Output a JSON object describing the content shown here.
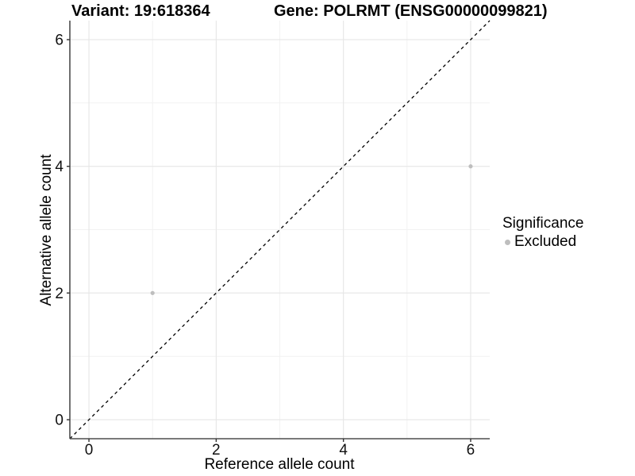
{
  "header": {
    "variant_title": "Variant: 19:618364",
    "gene_title": "Gene: POLRMT (ENSG00000099821)"
  },
  "legend": {
    "title": "Significance",
    "items": [
      {
        "label": "Excluded",
        "color": "#bebebe"
      }
    ]
  },
  "colors": {
    "background": "#ffffff",
    "grid_major": "#e6e6e6",
    "grid_minor": "#f2f2f2",
    "axis_line": "#4d4d4d",
    "tick_mark": "#333333",
    "tick_label": "#111111",
    "text": "#000000",
    "reference_line": "#000000",
    "point": "#bebebe"
  },
  "chart_data": {
    "type": "scatter",
    "title": "Variant: 19:618364  /  Gene: POLRMT (ENSG00000099821)",
    "xlabel": "Reference allele count",
    "ylabel": "Alternative allele count",
    "xlim": [
      -0.3,
      6.3
    ],
    "ylim": [
      -0.3,
      6.3
    ],
    "x_ticks": [
      0,
      2,
      4,
      6
    ],
    "y_ticks": [
      0,
      2,
      4,
      6
    ],
    "x_minor_ticks": [
      1,
      3,
      5
    ],
    "y_minor_ticks": [
      1,
      3,
      5
    ],
    "grid": true,
    "legend_position": "right",
    "series": [
      {
        "name": "Excluded",
        "color": "#bebebe",
        "points": [
          {
            "x": 1,
            "y": 2
          },
          {
            "x": 6,
            "y": 4
          }
        ]
      }
    ],
    "reference_line": {
      "type": "identity",
      "equation": "y = x",
      "style": "dashed"
    }
  }
}
